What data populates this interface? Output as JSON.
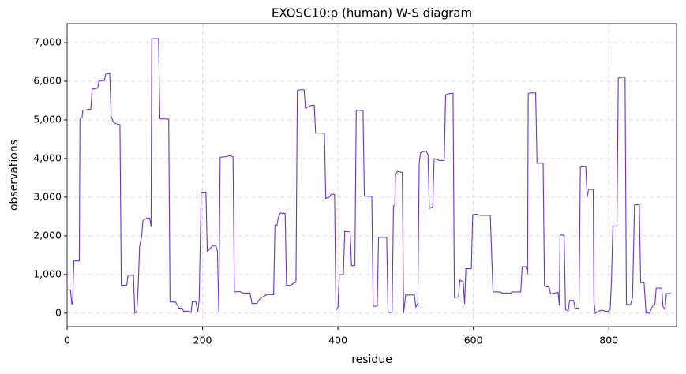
{
  "chart_data": {
    "type": "line",
    "title": "EXOSC10:p (human) W-S diagram",
    "x_label": "residue",
    "y_label": "observations",
    "xlim": [
      0,
      900
    ],
    "ylim": [
      -350,
      7490
    ],
    "xticks": [
      0,
      200,
      400,
      600,
      800
    ],
    "yticks": [
      0,
      {
        "value": 1000,
        "label": "1,000"
      },
      {
        "value": 2000,
        "label": "2,000"
      },
      {
        "value": 3000,
        "label": "3,000"
      },
      {
        "value": 4000,
        "label": "4,000"
      },
      {
        "value": 5000,
        "label": "5,000"
      },
      {
        "value": 6000,
        "label": "6,000"
      },
      {
        "value": 7000,
        "label": "7,000"
      }
    ],
    "grid": true,
    "x": [
      0,
      5,
      7,
      8,
      10,
      18,
      19,
      22,
      23,
      35,
      37,
      45,
      47,
      55,
      57,
      63,
      65,
      68,
      72,
      78,
      80,
      88,
      90,
      98,
      100,
      103,
      105,
      107,
      110,
      112,
      118,
      122,
      124,
      125,
      135,
      137,
      150,
      152,
      160,
      165,
      170,
      172,
      180,
      183,
      185,
      190,
      193,
      195,
      198,
      205,
      207,
      210,
      215,
      220,
      222,
      224,
      226,
      235,
      240,
      245,
      247,
      255,
      260,
      270,
      273,
      280,
      285,
      295,
      305,
      307,
      310,
      312,
      315,
      322,
      324,
      330,
      335,
      338,
      340,
      345,
      350,
      352,
      357,
      360,
      365,
      367,
      375,
      380,
      382,
      387,
      390,
      395,
      397,
      400,
      402,
      408,
      410,
      418,
      420,
      425,
      427,
      437,
      439,
      450,
      452,
      458,
      460,
      472,
      474,
      480,
      482,
      484,
      485,
      488,
      495,
      497,
      500,
      513,
      515,
      518,
      520,
      522,
      530,
      533,
      535,
      540,
      542,
      550,
      557,
      559,
      565,
      570,
      572,
      578,
      580,
      585,
      587,
      589,
      597,
      599,
      605,
      610,
      620,
      625,
      629,
      640,
      642,
      655,
      657,
      670,
      672,
      678,
      680,
      681,
      685,
      692,
      694,
      703,
      705,
      712,
      714,
      720,
      725,
      727,
      728,
      734,
      736,
      740,
      742,
      748,
      750,
      756,
      758,
      766,
      768,
      770,
      777,
      778,
      780,
      785,
      790,
      795,
      800,
      802,
      804,
      806,
      812,
      814,
      818,
      824,
      826,
      832,
      835,
      838,
      845,
      847,
      852,
      855,
      860,
      865,
      868,
      870,
      878,
      880,
      883,
      885,
      892
    ],
    "series": [
      {
        "name": "observations",
        "color": "#6a35d4",
        "values": [
          600,
          600,
          230,
          240,
          1350,
          1350,
          5050,
          5050,
          5250,
          5280,
          5800,
          5820,
          6000,
          6020,
          6180,
          6200,
          5100,
          4950,
          4900,
          4880,
          720,
          720,
          980,
          980,
          0,
          50,
          700,
          1720,
          1980,
          2400,
          2460,
          2460,
          2230,
          7100,
          7100,
          5030,
          5020,
          290,
          290,
          130,
          130,
          50,
          50,
          20,
          300,
          300,
          30,
          330,
          3130,
          3130,
          1600,
          1650,
          1750,
          1730,
          1600,
          30,
          4030,
          4050,
          4070,
          4050,
          550,
          560,
          520,
          520,
          250,
          250,
          380,
          480,
          480,
          2280,
          2280,
          2480,
          2590,
          2580,
          720,
          720,
          780,
          800,
          5760,
          5780,
          5780,
          5300,
          5350,
          5370,
          5380,
          4660,
          4660,
          4650,
          2970,
          3000,
          3080,
          3070,
          80,
          150,
          1000,
          1000,
          2120,
          2100,
          1230,
          1230,
          5250,
          5240,
          3030,
          3020,
          180,
          180,
          1960,
          1960,
          20,
          20,
          2770,
          2780,
          3590,
          3670,
          3640,
          0,
          470,
          470,
          160,
          250,
          3880,
          4150,
          4200,
          4100,
          2710,
          2750,
          4000,
          3950,
          3950,
          5650,
          5680,
          5690,
          400,
          420,
          850,
          820,
          240,
          1150,
          1150,
          2550,
          2560,
          2530,
          2530,
          2530,
          550,
          550,
          520,
          520,
          550,
          550,
          1200,
          1200,
          1000,
          5680,
          5700,
          5700,
          3880,
          3880,
          700,
          670,
          500,
          520,
          540,
          200,
          2020,
          2020,
          100,
          50,
          330,
          330,
          130,
          130,
          3780,
          3790,
          3000,
          3200,
          3200,
          300,
          0,
          50,
          80,
          50,
          50,
          100,
          880,
          2250,
          2260,
          6080,
          6100,
          6100,
          220,
          220,
          400,
          2800,
          2800,
          790,
          790,
          0,
          0,
          200,
          220,
          650,
          650,
          170,
          100,
          510,
          510
        ]
      }
    ]
  }
}
